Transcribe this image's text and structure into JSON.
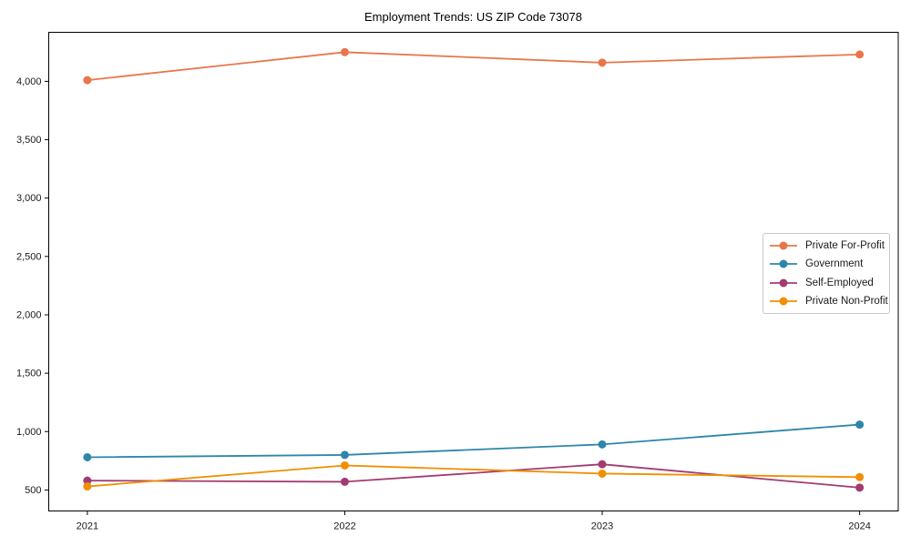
{
  "chart_data": {
    "type": "line",
    "title": "Employment Trends: US ZIP Code 73078",
    "x": [
      2021,
      2022,
      2023,
      2024
    ],
    "x_tick_labels": [
      "2021",
      "2022",
      "2023",
      "2024"
    ],
    "y_ticks": [
      500,
      1000,
      1500,
      2000,
      2500,
      3000,
      3500,
      4000
    ],
    "y_tick_labels": [
      "500",
      "1,000",
      "1,500",
      "2,000",
      "2,500",
      "3,000",
      "3,500",
      "4,000"
    ],
    "xlim": [
      2020.85,
      2024.15
    ],
    "ylim": [
      320,
      4420
    ],
    "grid": false,
    "legend_position": "center-right",
    "background_color": "#ffffff",
    "axis_color": "#000000",
    "series": [
      {
        "name": "Private For-Profit",
        "color": "#E8764A",
        "values": [
          4010,
          4250,
          4160,
          4230
        ]
      },
      {
        "name": "Government",
        "color": "#2E86AB",
        "values": [
          780,
          800,
          890,
          1060
        ]
      },
      {
        "name": "Self-Employed",
        "color": "#A23B72",
        "values": [
          580,
          570,
          720,
          520
        ]
      },
      {
        "name": "Private Non-Profit",
        "color": "#F18F01",
        "values": [
          530,
          710,
          640,
          610
        ]
      }
    ]
  }
}
